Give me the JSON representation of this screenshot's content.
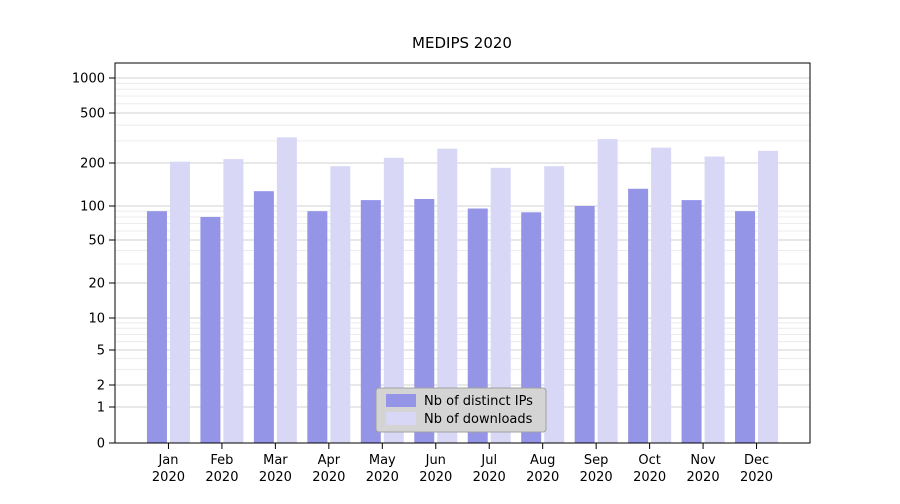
{
  "chart_data": {
    "type": "bar",
    "title": "MEDIPS 2020",
    "categories": [
      "Jan 2020",
      "Feb 2020",
      "Mar 2020",
      "Apr 2020",
      "May 2020",
      "Jun 2020",
      "Jul 2020",
      "Aug 2020",
      "Sep 2020",
      "Oct 2020",
      "Nov 2020",
      "Dec 2020"
    ],
    "series": [
      {
        "name": "Nb of distinct IPs",
        "color": "#9595e8",
        "values": [
          90,
          80,
          127,
          90,
          110,
          112,
          95,
          88,
          100,
          132,
          110,
          90
        ]
      },
      {
        "name": "Nb of downloads",
        "color": "#d8d8f6",
        "values": [
          205,
          215,
          320,
          190,
          220,
          260,
          185,
          190,
          310,
          265,
          225,
          250
        ]
      }
    ],
    "y_axis": {
      "scale": "log",
      "ticks": [
        0,
        1,
        2,
        5,
        10,
        20,
        50,
        100,
        200,
        500,
        1000
      ]
    },
    "xlabel": "",
    "ylabel": "",
    "grid": true,
    "legend_position": "lower center",
    "background": "#ffffff"
  }
}
